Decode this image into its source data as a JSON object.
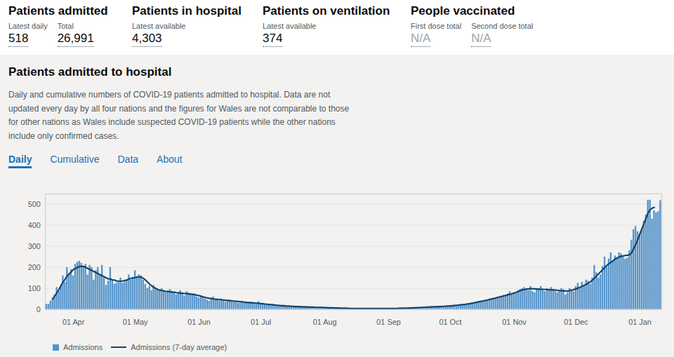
{
  "header": {
    "cards": [
      {
        "title": "Patients admitted",
        "metrics": [
          {
            "label": "Latest daily",
            "value": "518"
          },
          {
            "label": "Total",
            "value": "26,991"
          }
        ]
      },
      {
        "title": "Patients in hospital",
        "metrics": [
          {
            "label": "Latest available",
            "value": "4,303"
          }
        ]
      },
      {
        "title": "Patients on ventilation",
        "metrics": [
          {
            "label": "Latest available",
            "value": "374"
          }
        ]
      },
      {
        "title": "People vaccinated",
        "metrics": [
          {
            "label": "First dose total",
            "value": "N/A"
          },
          {
            "label": "Second dose total",
            "value": "N/A"
          }
        ]
      }
    ]
  },
  "section": {
    "title": "Patients admitted to hospital",
    "description": "Daily and cumulative numbers of COVID-19 patients admitted to hospital. Data are not updated every day by all four nations and the figures for Wales are not comparable to those for other nations as Wales include suspected COVID-19 patients while the other nations include only confirmed cases.",
    "tabs": [
      "Daily",
      "Cumulative",
      "Data",
      "About"
    ],
    "active_tab": "Daily"
  },
  "chart_data": {
    "type": "bar",
    "legend": "bottom",
    "grid": true,
    "ylim": [
      0,
      550
    ],
    "yticks": [
      0,
      100,
      200,
      300,
      400,
      500
    ],
    "categories": [
      null,
      null,
      null,
      null,
      null,
      null,
      null,
      null,
      null,
      null,
      null,
      null,
      null,
      "01 Apr",
      null,
      null,
      null,
      null,
      null,
      null,
      null,
      null,
      null,
      null,
      null,
      null,
      null,
      null,
      null,
      null,
      null,
      null,
      null,
      null,
      null,
      null,
      null,
      null,
      null,
      null,
      null,
      null,
      null,
      "01 May",
      null,
      null,
      null,
      null,
      null,
      null,
      null,
      null,
      null,
      null,
      null,
      null,
      null,
      null,
      null,
      null,
      null,
      null,
      null,
      null,
      null,
      null,
      null,
      null,
      null,
      null,
      null,
      null,
      null,
      null,
      "01 Jun",
      null,
      null,
      null,
      null,
      null,
      null,
      null,
      null,
      null,
      null,
      null,
      null,
      null,
      null,
      null,
      null,
      null,
      null,
      null,
      null,
      null,
      null,
      null,
      null,
      null,
      null,
      null,
      null,
      null,
      "01 Jul",
      null,
      null,
      null,
      null,
      null,
      null,
      null,
      null,
      null,
      null,
      null,
      null,
      null,
      null,
      null,
      null,
      null,
      null,
      null,
      null,
      null,
      null,
      null,
      null,
      null,
      null,
      null,
      null,
      null,
      null,
      "01 Aug",
      null,
      null,
      null,
      null,
      null,
      null,
      null,
      null,
      null,
      null,
      null,
      null,
      null,
      null,
      null,
      null,
      null,
      null,
      null,
      null,
      null,
      null,
      null,
      null,
      null,
      null,
      null,
      null,
      null,
      null,
      "01 Sep",
      null,
      null,
      null,
      null,
      null,
      null,
      null,
      null,
      null,
      null,
      null,
      null,
      null,
      null,
      null,
      null,
      null,
      null,
      null,
      null,
      null,
      null,
      null,
      null,
      null,
      null,
      null,
      null,
      null,
      "01 Oct",
      null,
      null,
      null,
      null,
      null,
      null,
      null,
      null,
      null,
      null,
      null,
      null,
      null,
      null,
      null,
      null,
      null,
      null,
      null,
      null,
      null,
      null,
      null,
      null,
      null,
      null,
      null,
      null,
      null,
      null,
      "01 Nov",
      null,
      null,
      null,
      null,
      null,
      null,
      null,
      null,
      null,
      null,
      null,
      null,
      null,
      null,
      null,
      null,
      null,
      null,
      null,
      null,
      null,
      null,
      null,
      null,
      null,
      null,
      null,
      null,
      null,
      "01 Dec",
      null,
      null,
      null,
      null,
      null,
      null,
      null,
      null,
      null,
      null,
      null,
      null,
      null,
      null,
      null,
      null,
      null,
      null,
      null,
      null,
      null,
      null,
      null,
      null,
      null,
      null,
      null,
      null,
      null,
      null,
      "01 Jan",
      null,
      null,
      null,
      null,
      null,
      null,
      null,
      null,
      null,
      null
    ],
    "series": [
      {
        "name": "Admissions",
        "type": "bar",
        "color": "#5694ca",
        "values": [
          25,
          25,
          40,
          55,
          70,
          105,
          85,
          110,
          160,
          130,
          200,
          170,
          190,
          160,
          215,
          225,
          230,
          220,
          200,
          215,
          165,
          210,
          200,
          140,
          185,
          200,
          160,
          210,
          150,
          115,
          135,
          200,
          140,
          120,
          125,
          130,
          150,
          125,
          130,
          140,
          165,
          140,
          150,
          185,
          150,
          165,
          160,
          140,
          120,
          100,
          110,
          90,
          115,
          95,
          95,
          90,
          100,
          85,
          80,
          90,
          95,
          85,
          80,
          70,
          80,
          90,
          75,
          65,
          85,
          80,
          70,
          70,
          75,
          60,
          55,
          65,
          60,
          50,
          45,
          40,
          55,
          60,
          50,
          45,
          40,
          50,
          45,
          35,
          40,
          45,
          40,
          35,
          38,
          30,
          30,
          40,
          35,
          30,
          32,
          35,
          30,
          28,
          30,
          38,
          25,
          30,
          25,
          22,
          20,
          18,
          25,
          22,
          20,
          18,
          15,
          20,
          18,
          16,
          15,
          17,
          15,
          14,
          13,
          15,
          12,
          13,
          14,
          12,
          11,
          10,
          12,
          11,
          10,
          12,
          10,
          10,
          8,
          9,
          8,
          7,
          8,
          7,
          6,
          7,
          6,
          6,
          5,
          6,
          5,
          6,
          5,
          5,
          4,
          5,
          5,
          4,
          5,
          4,
          5,
          4,
          5,
          4,
          5,
          5,
          4,
          5,
          5,
          4,
          5,
          5,
          6,
          5,
          6,
          5,
          6,
          7,
          6,
          7,
          8,
          7,
          9,
          10,
          8,
          11,
          10,
          12,
          11,
          13,
          12,
          14,
          13,
          15,
          14,
          16,
          15,
          17,
          18,
          17,
          20,
          19,
          22,
          21,
          24,
          23,
          26,
          28,
          27,
          30,
          32,
          35,
          33,
          38,
          40,
          42,
          45,
          48,
          50,
          52,
          55,
          58,
          60,
          62,
          68,
          65,
          75,
          85,
          70,
          80,
          75,
          90,
          95,
          100,
          105,
          95,
          90,
          110,
          85,
          80,
          100,
          95,
          110,
          90,
          85,
          100,
          90,
          105,
          95,
          85,
          80,
          90,
          100,
          95,
          70,
          80,
          100,
          90,
          85,
          110,
          125,
          100,
          130,
          115,
          140,
          135,
          120,
          150,
          210,
          175,
          150,
          165,
          205,
          250,
          200,
          240,
          270,
          230,
          255,
          245,
          270,
          265,
          250,
          240,
          245,
          280,
          330,
          380,
          395,
          370,
          360,
          380,
          420,
          450,
          520,
          520,
          430,
          470,
          460,
          465,
          518
        ]
      },
      {
        "name": "Admissions (7-day average)",
        "type": "line",
        "color": "#12436d",
        "values": [
          null,
          null,
          null,
          50,
          65,
          80,
          95,
          115,
          130,
          145,
          160,
          170,
          180,
          190,
          195,
          200,
          205,
          205,
          205,
          200,
          195,
          190,
          185,
          180,
          175,
          170,
          165,
          160,
          155,
          150,
          145,
          145,
          140,
          140,
          135,
          135,
          135,
          135,
          138,
          140,
          145,
          148,
          150,
          152,
          155,
          155,
          153,
          148,
          140,
          130,
          120,
          112,
          105,
          100,
          95,
          92,
          90,
          88,
          86,
          85,
          84,
          83,
          82,
          80,
          79,
          78,
          77,
          76,
          75,
          74,
          73,
          72,
          70,
          68,
          66,
          63,
          60,
          57,
          55,
          53,
          52,
          50,
          49,
          48,
          47,
          46,
          45,
          44,
          43,
          42,
          41,
          40,
          39,
          38,
          37,
          36,
          35,
          34,
          33,
          32,
          32,
          31,
          30,
          29,
          28,
          27,
          26,
          25,
          24,
          23,
          22,
          21,
          20,
          19,
          18,
          18,
          17,
          16,
          16,
          15,
          15,
          14,
          14,
          13,
          13,
          12,
          12,
          12,
          11,
          11,
          11,
          10,
          10,
          10,
          10,
          9,
          9,
          8,
          8,
          8,
          7,
          7,
          7,
          6,
          6,
          6,
          6,
          5,
          5,
          5,
          5,
          5,
          5,
          5,
          5,
          5,
          5,
          5,
          5,
          5,
          5,
          5,
          5,
          5,
          5,
          5,
          5,
          5,
          5,
          5,
          5,
          6,
          6,
          6,
          6,
          7,
          7,
          7,
          8,
          8,
          9,
          9,
          10,
          10,
          11,
          11,
          12,
          12,
          13,
          13,
          14,
          14,
          15,
          15,
          16,
          16,
          17,
          18,
          19,
          20,
          21,
          22,
          23,
          24,
          26,
          27,
          29,
          31,
          33,
          35,
          37,
          39,
          41,
          43,
          45,
          48,
          50,
          52,
          55,
          57,
          60,
          62,
          65,
          67,
          70,
          72,
          75,
          78,
          82,
          86,
          90,
          93,
          95,
          97,
          98,
          99,
          99,
          98,
          97,
          97,
          96,
          96,
          95,
          95,
          94,
          94,
          93,
          92,
          91,
          90,
          89,
          88,
          88,
          88,
          90,
          92,
          95,
          98,
          102,
          106,
          110,
          115,
          120,
          125,
          132,
          140,
          150,
          160,
          170,
          180,
          190,
          200,
          210,
          218,
          225,
          232,
          240,
          245,
          250,
          253,
          255,
          257,
          258,
          260,
          270,
          290,
          310,
          335,
          360,
          385,
          410,
          435,
          460,
          475,
          482,
          485,
          null,
          null,
          null
        ]
      }
    ]
  }
}
